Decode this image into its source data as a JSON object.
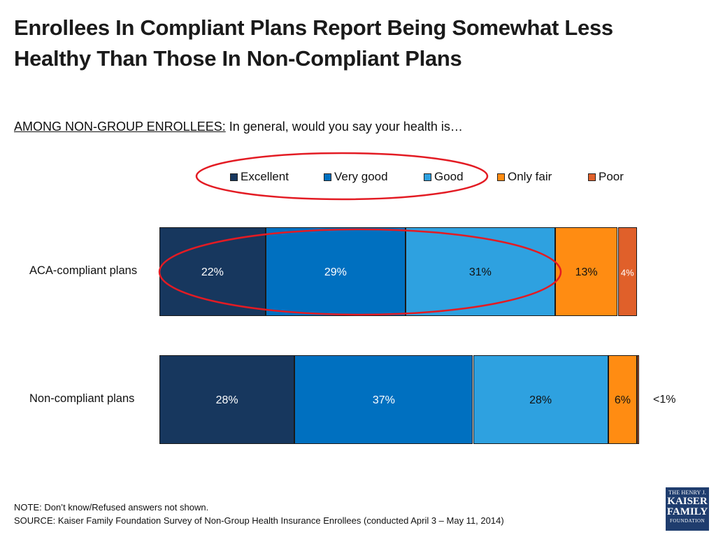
{
  "title": "Enrollees In Compliant Plans Report Being Somewhat Less Healthy Than Those In Non-Compliant Plans",
  "subtitle": {
    "prefix": "AMONG NON-GROUP ENROLLEES:",
    "question": " In general, would you say your health is…"
  },
  "colors": {
    "excellent": "#17375e",
    "very_good": "#0070c0",
    "good": "#2ea1e0",
    "only_fair": "#ff8c12",
    "poor": "#e0602a",
    "annotation": "#e31b23"
  },
  "chart_data": {
    "type": "bar",
    "orientation": "horizontal",
    "stacked": true,
    "legend_position": "top",
    "categories": [
      "ACA-compliant plans",
      "Non-compliant plans"
    ],
    "series": [
      {
        "name": "Excellent",
        "values": [
          22,
          28
        ],
        "labels": [
          "22%",
          "28%"
        ]
      },
      {
        "name": "Very good",
        "values": [
          29,
          37
        ],
        "labels": [
          "29%",
          "37%"
        ]
      },
      {
        "name": "Good",
        "values": [
          31,
          28
        ],
        "labels": [
          "31%",
          "28%"
        ]
      },
      {
        "name": "Only fair",
        "values": [
          13,
          6
        ],
        "labels": [
          "13%",
          "6%"
        ]
      },
      {
        "name": "Poor",
        "values": [
          4,
          0.4
        ],
        "labels": [
          "4%",
          "<1%"
        ]
      }
    ],
    "xlim": [
      0,
      100
    ]
  },
  "footer": {
    "note": "NOTE: Don’t know/Refused answers not shown.",
    "source": "SOURCE: Kaiser Family Foundation Survey of Non-Group Health Insurance Enrollees  (conducted April 3 – May 11, 2014)"
  },
  "logo": {
    "line1": "THE HENRY J.",
    "line2": "KAISER",
    "line3": "FAMILY",
    "line4": "FOUNDATION"
  }
}
